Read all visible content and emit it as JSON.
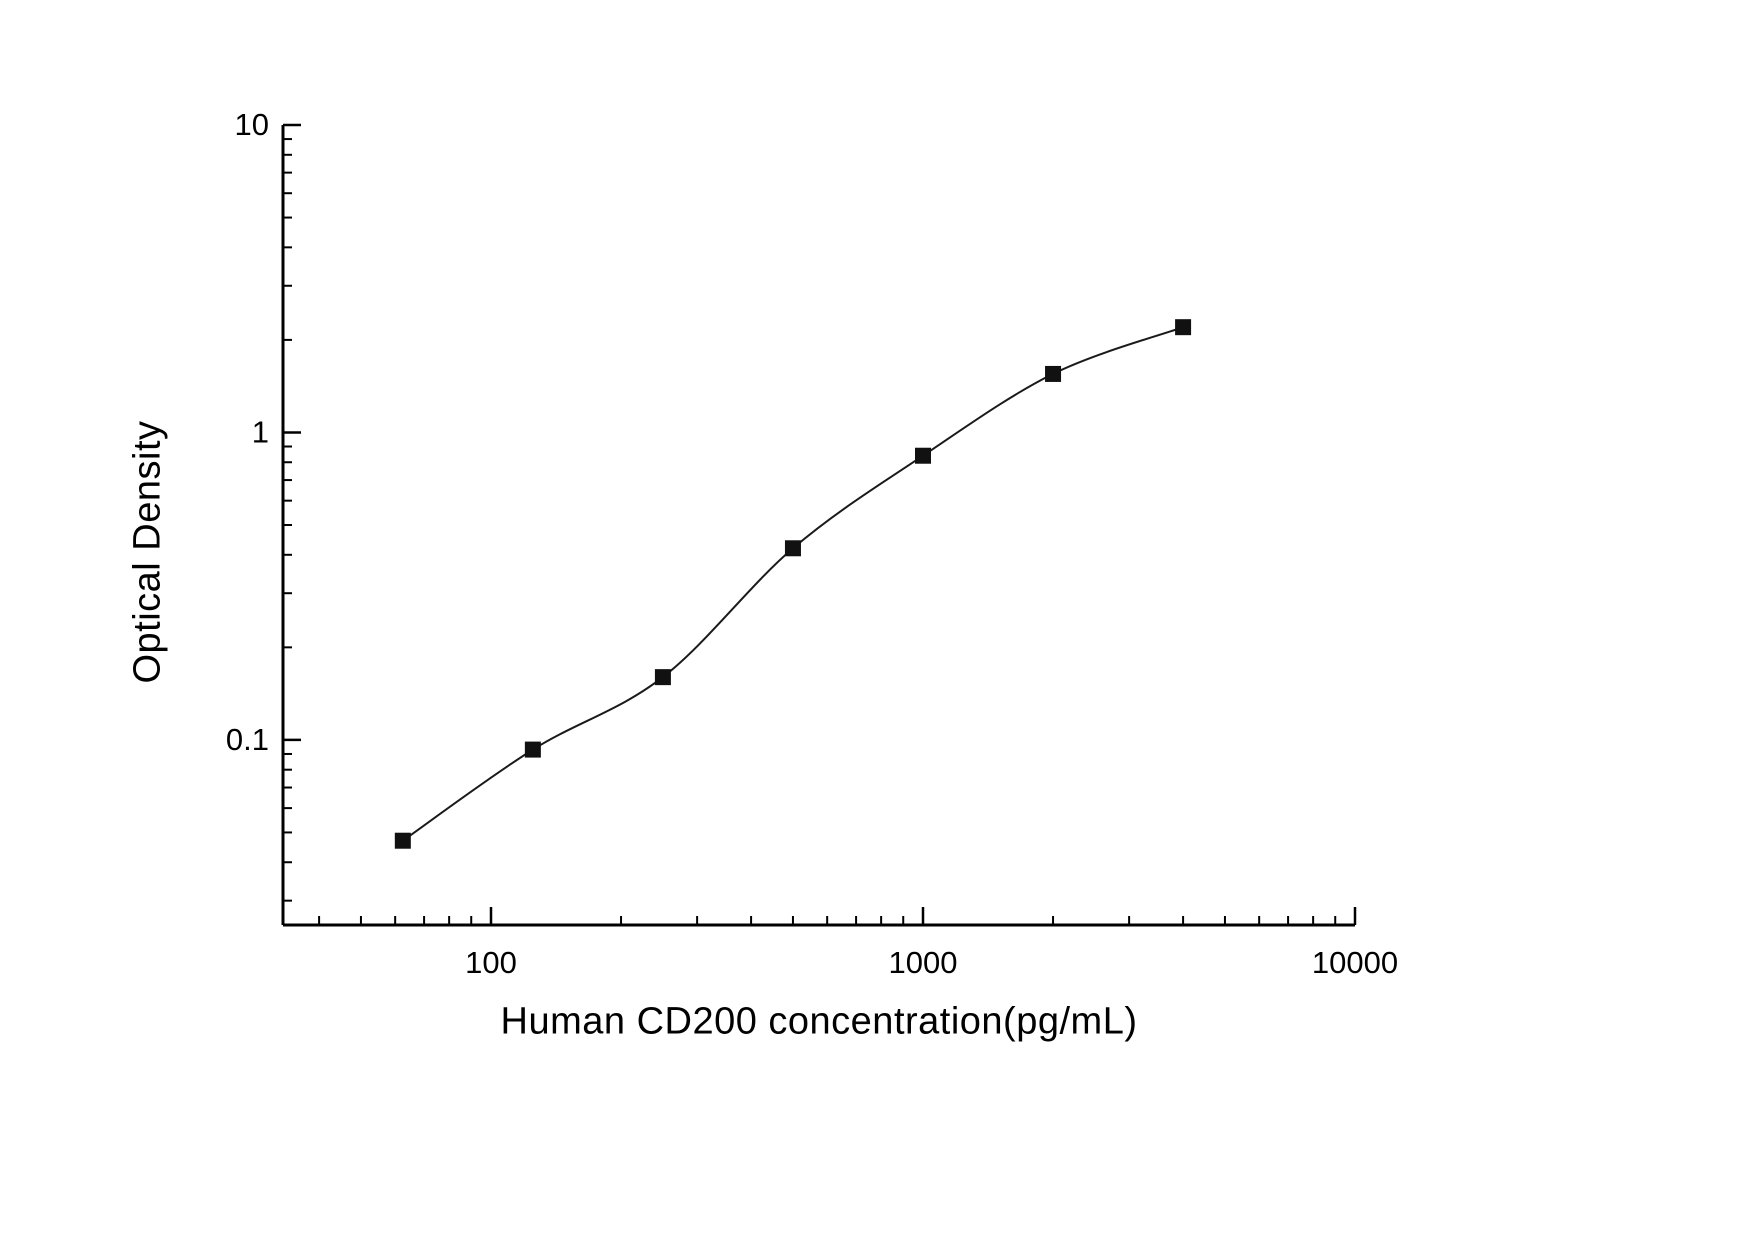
{
  "chart_data": {
    "type": "scatter",
    "title": "",
    "xlabel": "Human CD200 concentration(pg/mL)",
    "ylabel": "Optical Density",
    "x": [
      62.5,
      125,
      250,
      500,
      1000,
      2000,
      4000
    ],
    "values": [
      0.047,
      0.093,
      0.16,
      0.42,
      0.84,
      1.55,
      2.2
    ],
    "x_scale": "log",
    "y_scale": "log",
    "xlim": [
      33,
      10000
    ],
    "ylim": [
      0.025,
      10
    ],
    "x_ticks": [
      100,
      1000,
      10000
    ],
    "x_tick_labels": [
      "100",
      "1000",
      "10000"
    ],
    "y_ticks": [
      10,
      1,
      0.1
    ],
    "y_tick_labels": [
      "10",
      "1",
      "0.1"
    ],
    "grid": false,
    "legend": "none",
    "marker": "square",
    "marker_size": 16,
    "marker_color": "#111111",
    "line_color": "#1a1a1a",
    "axis_color": "#000000",
    "background": "#ffffff"
  }
}
